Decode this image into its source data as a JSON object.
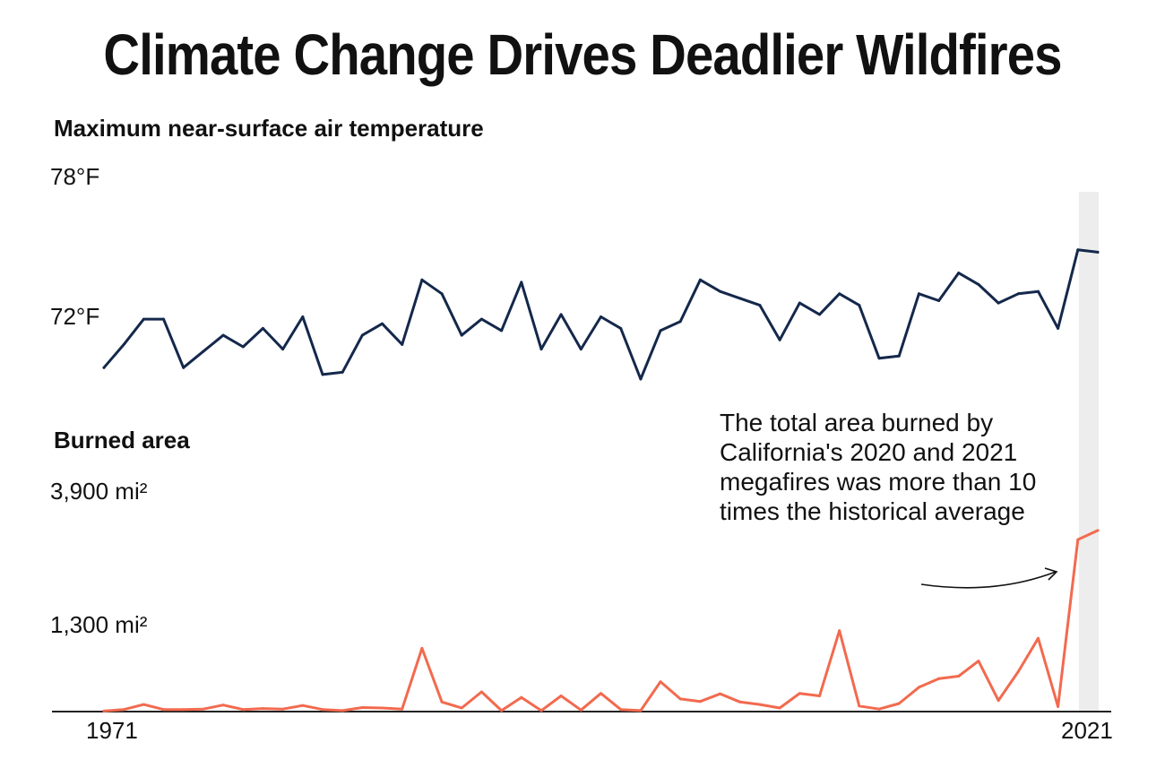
{
  "title": "Climate Change Drives Deadlier Wildfires",
  "colors": {
    "temperature": "#14284b",
    "burned": "#f26a4f",
    "highlight": "#ededed",
    "axis": "#222222"
  },
  "chart_data": [
    {
      "type": "line",
      "title": "Maximum near-surface air temperature",
      "unit": "°F",
      "tick_labels": [
        "78°F",
        "72°F"
      ],
      "ylim": [
        66,
        78
      ],
      "series": [
        {
          "x": [
            1971,
            1972,
            1973,
            1974,
            1975,
            1976,
            1977,
            1978,
            1979,
            1980,
            1981,
            1982,
            1983,
            1984,
            1985,
            1986,
            1987,
            1988,
            1989,
            1990,
            1991,
            1992,
            1993,
            1994,
            1995,
            1996,
            1997,
            1998,
            1999,
            2000,
            2001,
            2002,
            2003,
            2004,
            2005,
            2006,
            2007,
            2008,
            2009,
            2010,
            2011,
            2012,
            2013,
            2014,
            2015,
            2016,
            2017,
            2018,
            2019,
            2020,
            2021
          ],
          "values": [
            69.8,
            70.8,
            71.9,
            71.9,
            69.8,
            70.5,
            71.2,
            70.7,
            71.5,
            70.6,
            72.0,
            69.5,
            69.6,
            71.2,
            71.7,
            70.8,
            73.6,
            73.0,
            71.2,
            71.9,
            71.4,
            73.5,
            70.6,
            72.1,
            70.6,
            72.0,
            71.5,
            69.3,
            71.4,
            71.8,
            73.6,
            73.1,
            72.8,
            72.5,
            71.0,
            72.6,
            72.1,
            73.0,
            72.5,
            70.2,
            70.3,
            73.0,
            72.7,
            73.9,
            73.4,
            72.6,
            73.0,
            73.1,
            71.5,
            74.9,
            74.8
          ]
        }
      ]
    },
    {
      "type": "line",
      "title": "Burned area",
      "unit": "mi²",
      "tick_labels": [
        "3,900 mi²",
        "1,300 mi²"
      ],
      "ylim": [
        0,
        4500
      ],
      "series": [
        {
          "x": [
            1971,
            1972,
            1973,
            1974,
            1975,
            1976,
            1977,
            1978,
            1979,
            1980,
            1981,
            1982,
            1983,
            1984,
            1985,
            1986,
            1987,
            1988,
            1989,
            1990,
            1991,
            1992,
            1993,
            1994,
            1995,
            1996,
            1997,
            1998,
            1999,
            2000,
            2001,
            2002,
            2003,
            2004,
            2005,
            2006,
            2007,
            2008,
            2009,
            2010,
            2011,
            2012,
            2013,
            2014,
            2015,
            2016,
            2017,
            2018,
            2019,
            2020,
            2021
          ],
          "values": [
            10,
            40,
            140,
            40,
            40,
            50,
            130,
            40,
            60,
            50,
            120,
            40,
            20,
            80,
            70,
            50,
            1250,
            190,
            70,
            390,
            20,
            280,
            20,
            310,
            30,
            360,
            40,
            20,
            590,
            250,
            200,
            350,
            190,
            140,
            70,
            360,
            310,
            1600,
            110,
            50,
            160,
            480,
            650,
            700,
            1000,
            220,
            790,
            1450,
            100,
            3400,
            3580
          ]
        }
      ],
      "annotation": "The total area burned by California's 2020 and 2021 megafires was more than 10 times the historical average"
    }
  ],
  "x_axis": {
    "range": [
      1971,
      2021
    ],
    "tick_labels": [
      "1971",
      "2021"
    ],
    "highlight": [
      2020,
      2021
    ]
  }
}
